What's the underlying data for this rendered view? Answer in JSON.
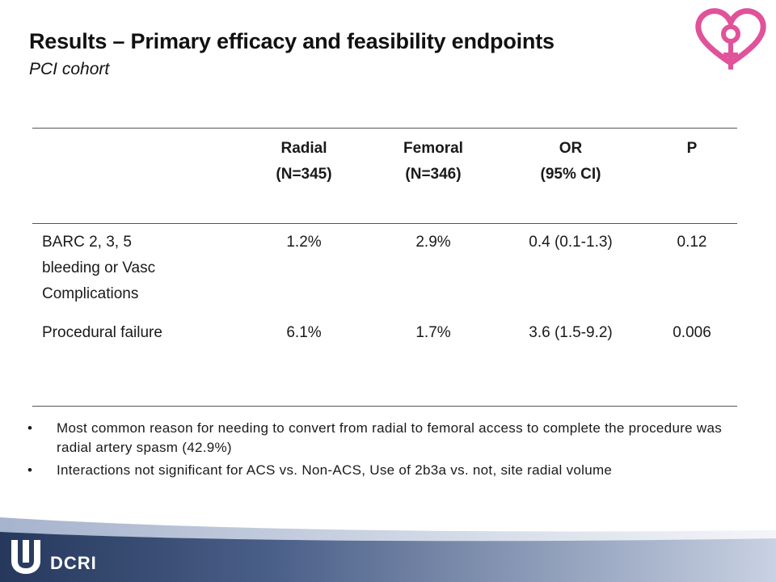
{
  "header": {
    "title": "Results – Primary efficacy and feasibility endpoints",
    "subtitle": "PCI cohort"
  },
  "table": {
    "columns": [
      {
        "line1": "Radial",
        "line2": "(N=345)"
      },
      {
        "line1": "Femoral",
        "line2": "(N=346)"
      },
      {
        "line1": "OR",
        "line2": "(95% CI)"
      },
      {
        "line1": "P",
        "line2": ""
      }
    ],
    "rows": [
      {
        "label_lines": [
          "BARC 2, 3, 5",
          "bleeding or Vasc",
          "Complications"
        ],
        "values": [
          "1.2%",
          "2.9%",
          "0.4 (0.1-1.3)",
          "0.12"
        ]
      },
      {
        "label_lines": [
          "Procedural failure"
        ],
        "values": [
          "6.1%",
          "1.7%",
          "3.6 (1.5-9.2)",
          "0.006"
        ]
      }
    ]
  },
  "bullets": [
    {
      "text": "Most common reason for needing to convert from radial to femoral access to complete the procedure was radial artery spasm (42.9%)"
    },
    {
      "text": "Interactions not significant for ACS vs. Non-ACS, Use of 2b3a vs. not, site radial volume"
    }
  ],
  "bullet_char": "•",
  "footer": {
    "org_text": "DCRI",
    "colors": {
      "band_dark": "#2c3e63",
      "band_light": "#7c8fb4"
    }
  },
  "logo": {
    "icon": "heart-female-symbol-icon",
    "color": "#e0529a"
  }
}
